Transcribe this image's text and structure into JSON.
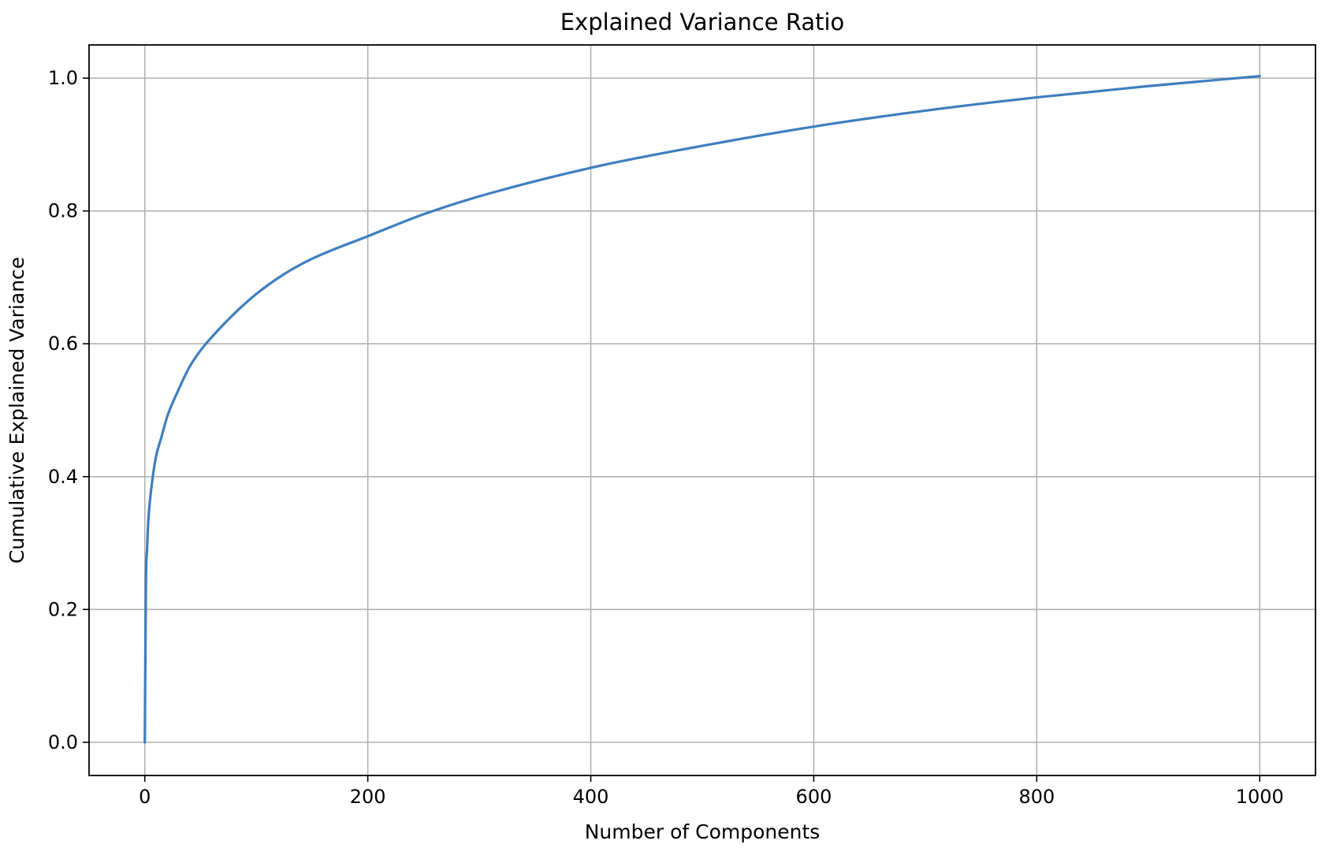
{
  "chart_data": {
    "type": "line",
    "title": "Explained Variance Ratio",
    "xlabel": "Number of Components",
    "ylabel": "Cumulative Explained Variance",
    "xlim": [
      -50,
      1050
    ],
    "ylim": [
      -0.05,
      1.05
    ],
    "xticks": [
      0,
      200,
      400,
      600,
      800,
      1000
    ],
    "xtick_labels": [
      "0",
      "200",
      "400",
      "600",
      "800",
      "1000"
    ],
    "yticks": [
      0.0,
      0.2,
      0.4,
      0.6,
      0.8,
      1.0
    ],
    "ytick_labels": [
      "0.0",
      "0.2",
      "0.4",
      "0.6",
      "0.8",
      "1.0"
    ],
    "grid": true,
    "legend": "none",
    "series": [
      {
        "color": "#3f7ebf",
        "x": [
          0,
          1,
          2,
          3,
          5,
          8,
          10,
          15,
          20,
          30,
          40,
          50,
          60,
          80,
          100,
          125,
          150,
          200,
          250,
          300,
          400,
          500,
          600,
          700,
          800,
          900,
          1000
        ],
        "y": [
          0.0,
          0.24,
          0.29,
          0.33,
          0.37,
          0.41,
          0.43,
          0.46,
          0.49,
          0.53,
          0.565,
          0.59,
          0.61,
          0.645,
          0.675,
          0.705,
          0.728,
          0.762,
          0.795,
          0.822,
          0.865,
          0.898,
          0.927,
          0.951,
          0.971,
          0.988,
          1.003
        ]
      }
    ]
  }
}
